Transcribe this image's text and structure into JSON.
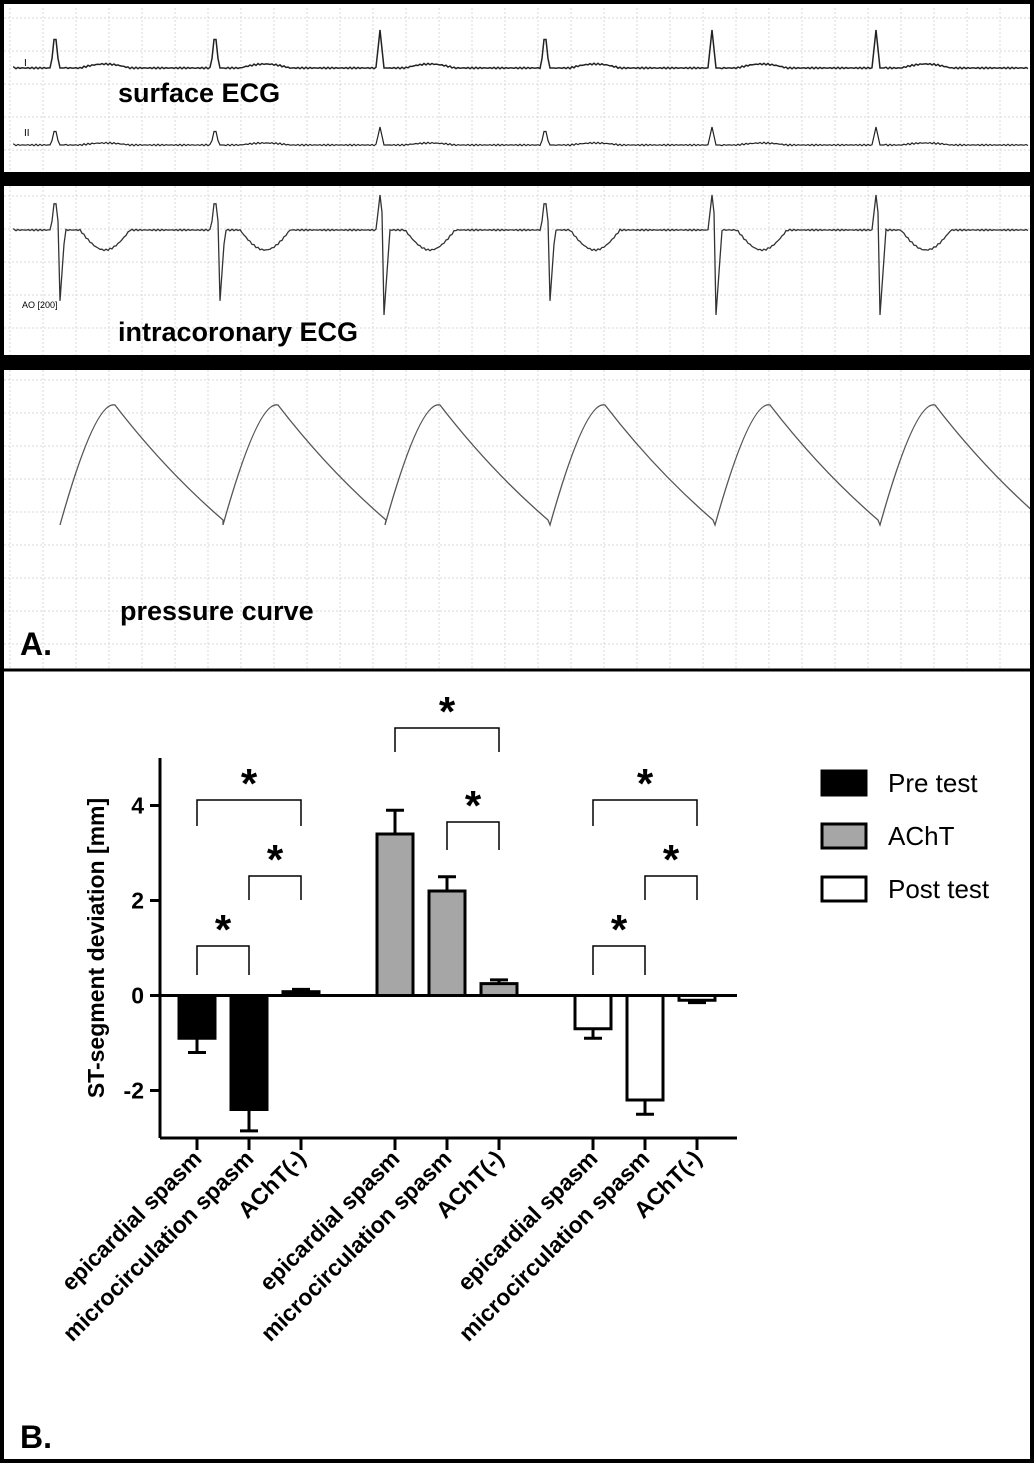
{
  "panel_a": {
    "label": "A.",
    "traces": [
      "surface ECG",
      "intracoronary ECG",
      "pressure curve"
    ],
    "lead_labels": [
      "I",
      "II",
      "AO [200]"
    ]
  },
  "panel_b": {
    "label": "B."
  },
  "chart_data": {
    "type": "bar",
    "y_label": "ST-segment deviation [mm]",
    "categories": [
      "epicardial spasm",
      "microcirculation spasm",
      "AChT(-)",
      "epicardial spasm",
      "microcirculation spasm",
      "AChT(-)",
      "epicardial spasm",
      "microcirculation spasm",
      "AChT(-)"
    ],
    "series": [
      {
        "name": "Pre test",
        "color": "#000000",
        "values": [
          -0.9,
          -2.4,
          0.08,
          null,
          null,
          null,
          null,
          null,
          null
        ],
        "errors": [
          0.3,
          0.45,
          0.05,
          null,
          null,
          null,
          null,
          null,
          null
        ]
      },
      {
        "name": "AChT",
        "color": "#a6a6a6",
        "values": [
          null,
          null,
          null,
          3.4,
          2.2,
          0.25,
          null,
          null,
          null
        ],
        "errors": [
          null,
          null,
          null,
          0.5,
          0.3,
          0.08,
          null,
          null,
          null
        ]
      },
      {
        "name": "Post test",
        "color": "#ffffff",
        "values": [
          null,
          null,
          null,
          null,
          null,
          null,
          -0.7,
          -2.2,
          -0.1
        ],
        "errors": [
          null,
          null,
          null,
          null,
          null,
          null,
          0.2,
          0.3,
          0.05
        ]
      }
    ],
    "ylim": [
      -3,
      5
    ],
    "yticks": [
      -2,
      0,
      2,
      4
    ],
    "annotations": [
      "*",
      "*",
      "*",
      "*",
      "*",
      "*",
      "*",
      "*"
    ]
  }
}
